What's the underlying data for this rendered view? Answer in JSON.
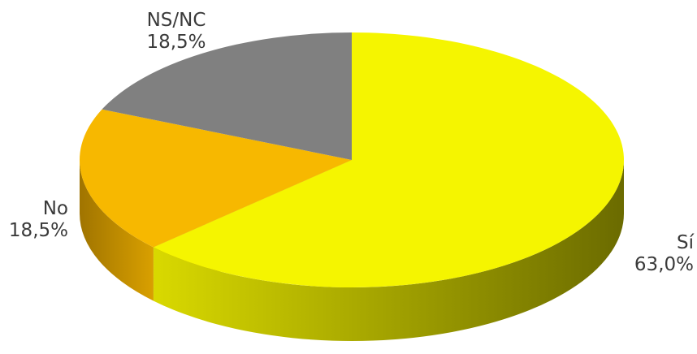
{
  "chart_data": {
    "type": "pie",
    "style": "3d",
    "slices": [
      {
        "name": "Sí",
        "value": 63.0,
        "label": "63,0%",
        "color": "#f5f500",
        "side_light": "#d9d900",
        "side_dark": "#6b6b00"
      },
      {
        "name": "No",
        "value": 18.5,
        "label": "18,5%",
        "color": "#f7b800",
        "side_light": "#d9a000",
        "side_dark": "#a07400"
      },
      {
        "name": "NS/NC",
        "value": 18.5,
        "label": "18,5%",
        "color": "#808080",
        "side_light": "#6e6e6e",
        "side_dark": "#555555"
      }
    ],
    "start": "12 o'clock",
    "direction": "clockwise"
  }
}
